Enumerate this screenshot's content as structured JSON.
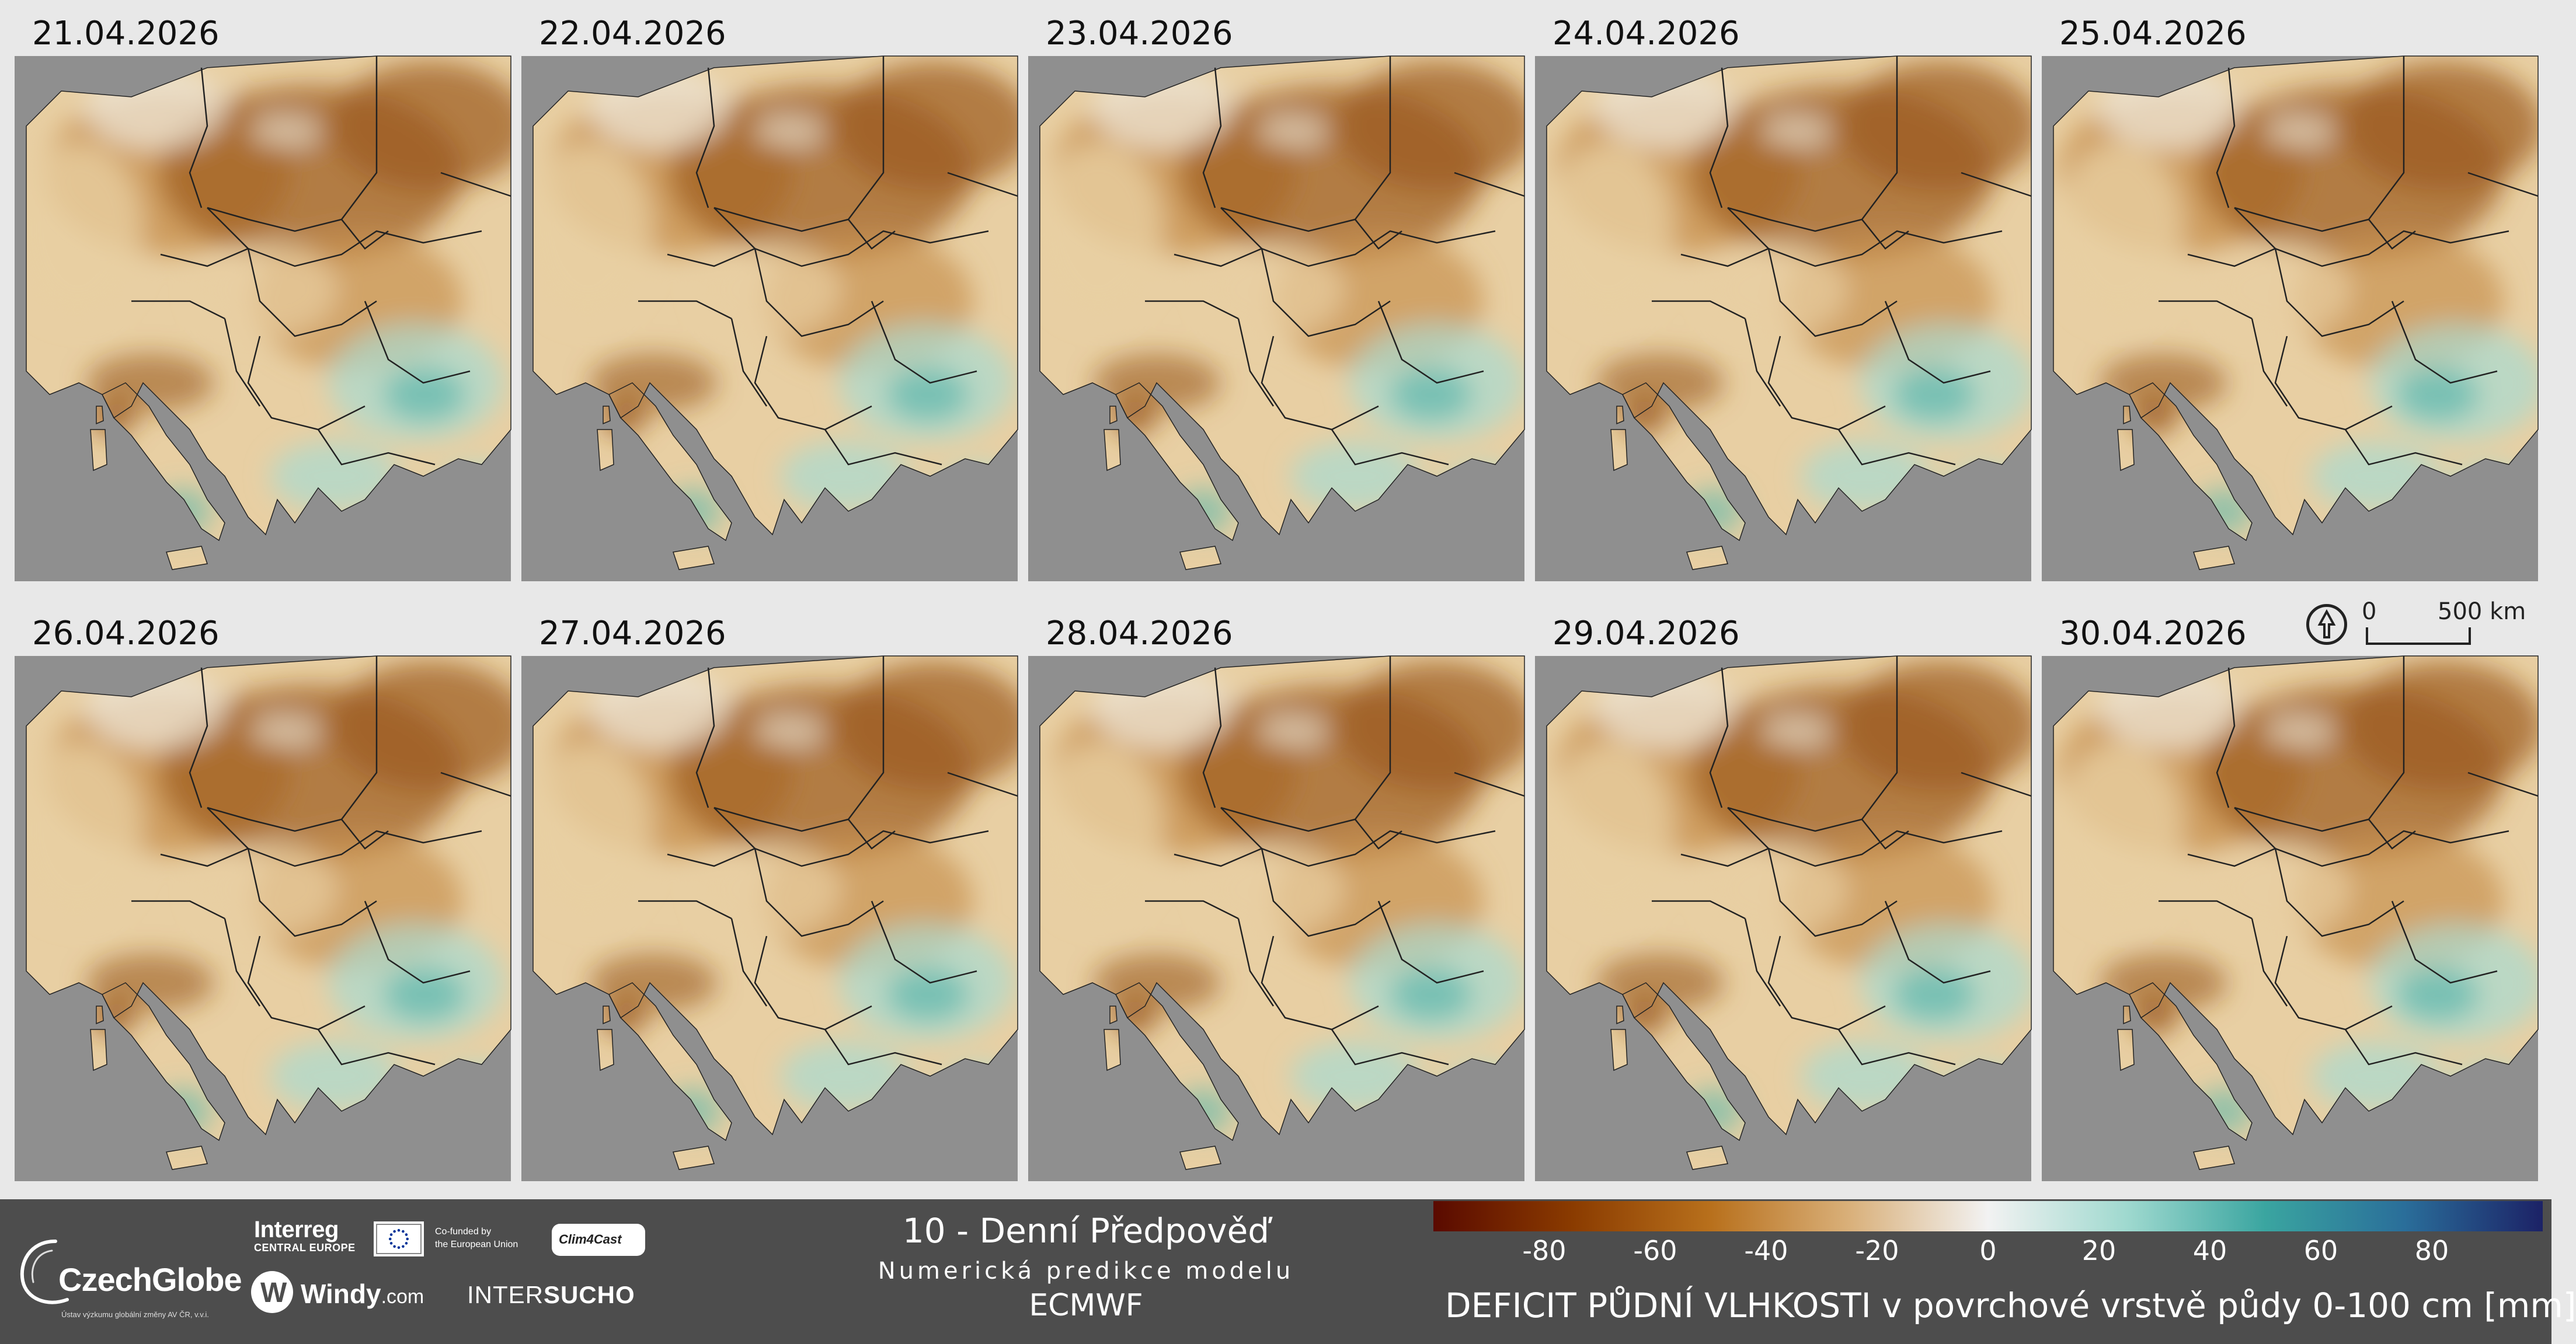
{
  "panels": [
    {
      "date": "21.04.2026"
    },
    {
      "date": "22.04.2026"
    },
    {
      "date": "23.04.2026"
    },
    {
      "date": "24.04.2026"
    },
    {
      "date": "25.04.2026"
    },
    {
      "date": "26.04.2026"
    },
    {
      "date": "27.04.2026"
    },
    {
      "date": "28.04.2026"
    },
    {
      "date": "29.04.2026"
    },
    {
      "date": "30.04.2026"
    }
  ],
  "scale": {
    "zero_label": "0",
    "distance_label": "500 km",
    "north_icon": "north-arrow-icon"
  },
  "title": {
    "line1": "10 - Denní Předpověď",
    "line2": "Numerická predikce modelu",
    "line3": "ECMWF"
  },
  "logos": {
    "czechglobe": "CzechGlobe",
    "czechglobe_sub": "Ústav výzkumu globální změny AV ČR, v.v.i.",
    "interreg": "Interreg",
    "interreg_sub": "CENTRAL EUROPE",
    "eu_line1": "Co-funded by",
    "eu_line2": "the European Union",
    "clim4cast": "Clim4Cast",
    "windy": "Windy",
    "windy_suffix": ".com",
    "intersucho_a": "INTER",
    "intersucho_b": "SUCHO"
  },
  "legend": {
    "title": "DEFICIT PŮDNÍ VLHKOSTI v povrchové vrstvě půdy 0-100 cm [mm]",
    "ticks": [
      "-80",
      "-60",
      "-40",
      "-20",
      "0",
      "20",
      "40",
      "60",
      "80"
    ],
    "tick_values": [
      -80,
      -60,
      -40,
      -20,
      0,
      20,
      40,
      60,
      80
    ],
    "range": [
      -100,
      100
    ],
    "colors": [
      "#5a0a00",
      "#8a3b00",
      "#b8701c",
      "#d9b07a",
      "#f2f2f2",
      "#9fd9cf",
      "#3aa5a0",
      "#2a6e9a",
      "#1c2266"
    ]
  },
  "map_colors": {
    "background": "#8f8f8f",
    "dry_dark": "#9b5a1e",
    "dry_mid": "#c8914f",
    "dry_light": "#e8cfa3",
    "neutral": "#f0ebe0",
    "wet_light": "#a8dcd2",
    "wet_mid": "#5cb7ad"
  }
}
